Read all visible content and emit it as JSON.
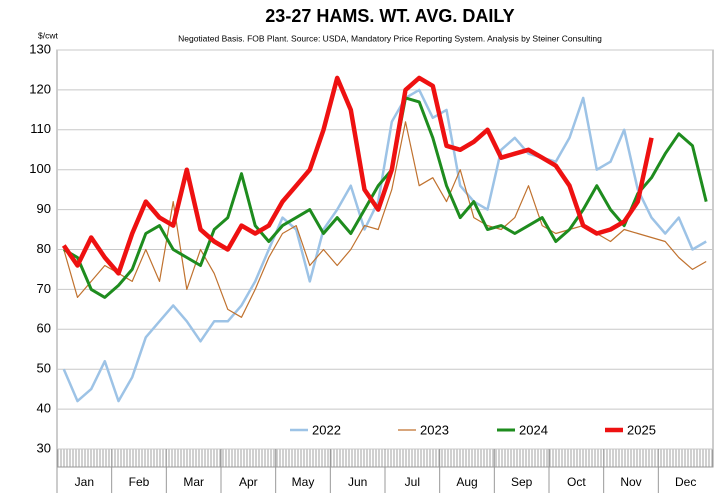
{
  "chart_data": {
    "type": "line",
    "title": "23-27 HAMS.  WT. AVG.  DAILY",
    "subtitle": "Negotiated Basis.  FOB Plant.  Source: USDA, Mandatory Price Reporting System.  Analysis by Steiner Consulting",
    "y_label": "$/cwt",
    "categories": [
      "Jan",
      null,
      null,
      null,
      "Feb",
      null,
      null,
      null,
      "Mar",
      null,
      null,
      null,
      "Apr",
      null,
      null,
      null,
      "May",
      null,
      null,
      null,
      "Jun",
      null,
      null,
      null,
      "Jul",
      null,
      null,
      null,
      "Aug",
      null,
      null,
      null,
      "Sep",
      null,
      null,
      null,
      "Oct",
      null,
      null,
      null,
      "Nov",
      null,
      null,
      null,
      "Dec",
      null,
      null,
      null
    ],
    "series": [
      {
        "name": "2022",
        "color": "#9dc3e6",
        "values": [
          50,
          42,
          45,
          52,
          42,
          48,
          58,
          62,
          66,
          62,
          57,
          62,
          62,
          66,
          72,
          80,
          88,
          85,
          72,
          85,
          90,
          96,
          85,
          92,
          112,
          118,
          120,
          113,
          115,
          96,
          92,
          90,
          105,
          108,
          104,
          103,
          102,
          108,
          118,
          100,
          102,
          110,
          95,
          88,
          84,
          88,
          80,
          82
        ]
      },
      {
        "name": "2023",
        "color": "#c0722f",
        "values": [
          80,
          68,
          72,
          76,
          74,
          72,
          80,
          72,
          92,
          70,
          80,
          74,
          65,
          63,
          70,
          78,
          84,
          86,
          76,
          80,
          76,
          80,
          86,
          85,
          95,
          112,
          96,
          98,
          92,
          100,
          88,
          86,
          85,
          88,
          96,
          86,
          84,
          85,
          86,
          84,
          82,
          85,
          84,
          83,
          82,
          78,
          75,
          77
        ]
      },
      {
        "name": "2024",
        "color": "#1e8c1e",
        "values": [
          80,
          78,
          70,
          68,
          71,
          75,
          84,
          86,
          80,
          78,
          76,
          85,
          88,
          99,
          86,
          82,
          86,
          88,
          90,
          84,
          88,
          84,
          90,
          96,
          100,
          118,
          117,
          108,
          96,
          88,
          92,
          85,
          86,
          84,
          86,
          88,
          82,
          85,
          90,
          96,
          90,
          86,
          94,
          98,
          104,
          109,
          106,
          92
        ]
      },
      {
        "name": "2025",
        "color": "#ee1111",
        "values": [
          81,
          76,
          83,
          78,
          74,
          84,
          92,
          88,
          86,
          100,
          85,
          82,
          80,
          86,
          84,
          86,
          92,
          96,
          100,
          110,
          123,
          115,
          95,
          90,
          100,
          120,
          123,
          121,
          106,
          105,
          107,
          110,
          103,
          104,
          105,
          103,
          101,
          96,
          86,
          84,
          85,
          87,
          92,
          108,
          null,
          null,
          null,
          null
        ]
      }
    ],
    "ylim": [
      30,
      130
    ],
    "yticks": [
      30,
      40,
      50,
      60,
      70,
      80,
      90,
      100,
      110,
      120,
      130
    ],
    "grid": true
  }
}
